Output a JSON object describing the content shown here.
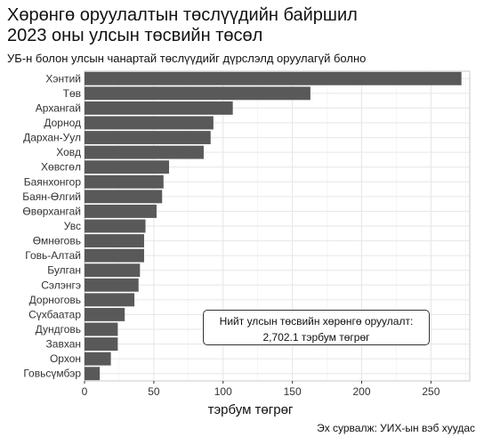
{
  "title_line1": "Хөрөнгө оруулалтын төслүүдийн байршил",
  "title_line2": "2023 оны улсын төсвийн төсөл",
  "subtitle": "УБ-н болон улсын чанартай төслүүдийг дүрслэлд оруулагүй болно",
  "caption": "Эх сурвалж: УИХ-ын вэб хуудас",
  "annotation": {
    "line1": "Нийт улсын төсвийн хөрөнгө оруулалт:",
    "line2": "2,702.1 тэрбум төгрөг"
  },
  "chart_data": {
    "type": "bar",
    "orientation": "horizontal",
    "categories": [
      "Хэнтий",
      "Төв",
      "Архангай",
      "Дорнод",
      "Дархан-Уул",
      "Ховд",
      "Хөвсгөл",
      "Баянхонгор",
      "Баян-Өлгий",
      "Өвөрхангай",
      "Увс",
      "Өмнөговь",
      "Говь-Алтай",
      "Булган",
      "Сэлэнгэ",
      "Дорноговь",
      "Сүхбаатар",
      "Дундговь",
      "Завхан",
      "Орхон",
      "Говьсүмбэр"
    ],
    "values": [
      272,
      163,
      107,
      93,
      91,
      86,
      61,
      57,
      56,
      52,
      44,
      43,
      43,
      40,
      39,
      36,
      29,
      24,
      24,
      19,
      11
    ],
    "xlabel": "тэрбум төгрөг",
    "ylabel": "",
    "xlim": [
      0,
      278
    ],
    "x_ticks": [
      0,
      50,
      100,
      150,
      200,
      250
    ],
    "bar_color": "#595959",
    "grid": true,
    "panel_color": "#ffffff",
    "grid_color": "#e6e6e6"
  }
}
